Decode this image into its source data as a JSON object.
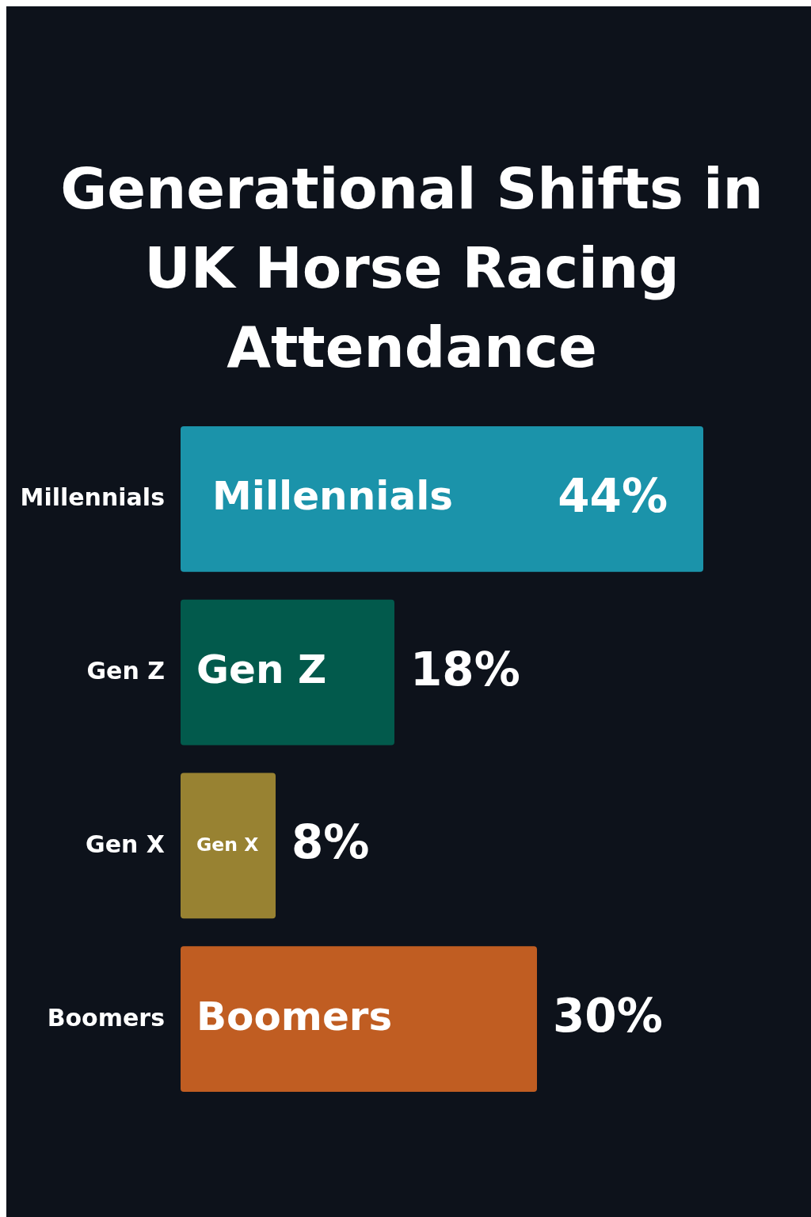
{
  "chart_data": {
    "type": "bar",
    "orientation": "horizontal",
    "title": "Generational Shifts in UK Horse Racing Attendance",
    "categories": [
      "Millennials",
      "Gen Z",
      "Gen X",
      "Boomers"
    ],
    "values": [
      44,
      18,
      8,
      30
    ],
    "colors": [
      "#1b93aa",
      "#025a4c",
      "#988232",
      "#c05d22"
    ],
    "value_labels": [
      "44%",
      "18%",
      "8%",
      "30%"
    ]
  }
}
